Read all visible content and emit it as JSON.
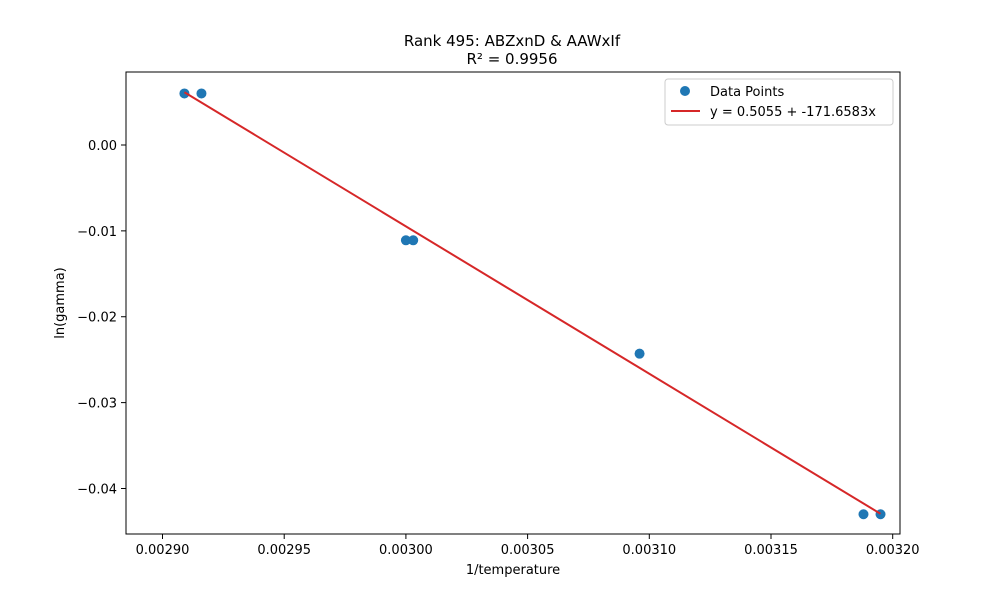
{
  "chart_data": {
    "type": "scatter",
    "title": "Rank 495: ABZxnD & AAWxIf",
    "subtitle": "R² = 0.9956",
    "xlabel": "1/temperature",
    "ylabel": "ln(gamma)",
    "xlim": [
      0.002885,
      0.003203
    ],
    "ylim": [
      -0.0453,
      0.0085
    ],
    "x_ticks": [
      0.0029,
      0.00295,
      0.003,
      0.00305,
      0.0031,
      0.00315,
      0.0032
    ],
    "x_tick_labels": [
      "0.00290",
      "0.00295",
      "0.00300",
      "0.00305",
      "0.00310",
      "0.00315",
      "0.00320"
    ],
    "y_ticks": [
      0.0,
      -0.01,
      -0.02,
      -0.03,
      -0.04
    ],
    "y_tick_labels": [
      "0.00",
      "−0.01",
      "−0.02",
      "−0.03",
      "−0.04"
    ],
    "grid": false,
    "legend_position": "top-right",
    "series": [
      {
        "name": "Data Points",
        "kind": "scatter",
        "color": "#1f77b4",
        "points": [
          {
            "x": 0.002909,
            "y": 0.006
          },
          {
            "x": 0.002916,
            "y": 0.006
          },
          {
            "x": 0.003,
            "y": -0.0111
          },
          {
            "x": 0.003003,
            "y": -0.0111
          },
          {
            "x": 0.003096,
            "y": -0.0243
          },
          {
            "x": 0.003188,
            "y": -0.043
          },
          {
            "x": 0.003195,
            "y": -0.043
          }
        ]
      },
      {
        "name": "y = 0.5055 + -171.6583x",
        "kind": "line",
        "color": "#d62728",
        "intercept": 0.5055,
        "slope": -171.6583,
        "x_range": [
          0.002909,
          0.003195
        ]
      }
    ]
  }
}
